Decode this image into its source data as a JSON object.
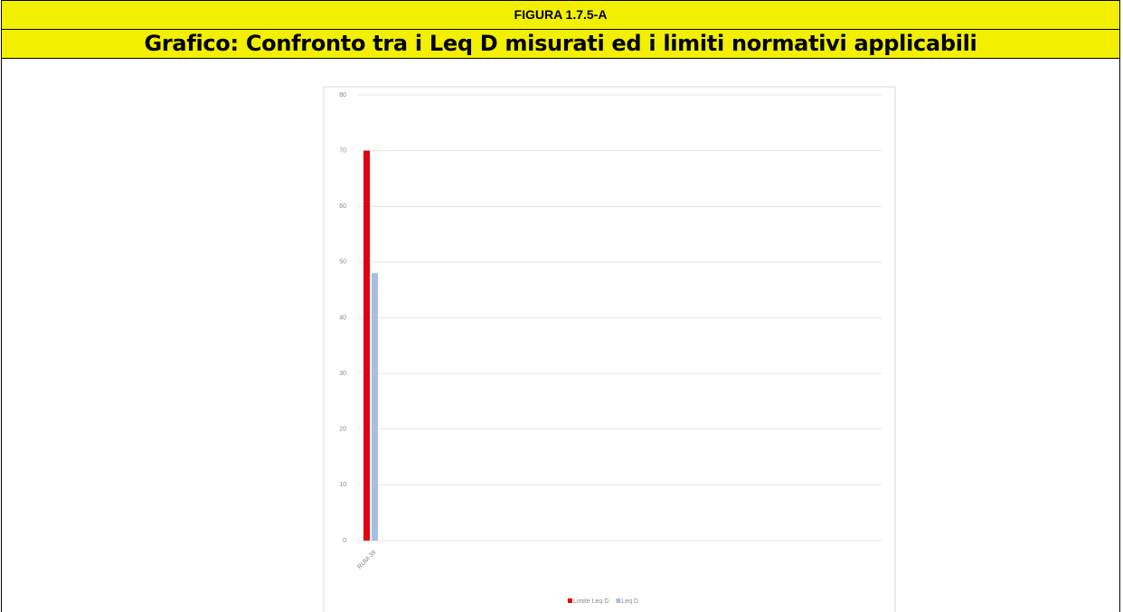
{
  "header": {
    "figure": "FIGURA 1.7.5-A",
    "title": "Grafico: Confronto tra i Leq D misurati ed i limiti normativi applicabili"
  },
  "chart_data": {
    "type": "bar",
    "categories": [
      "RUM-39"
    ],
    "series": [
      {
        "name": "Limite Leq D",
        "color": "#e3000f",
        "values": [
          70
        ]
      },
      {
        "name": "Leq D",
        "color": "#a7c0e2",
        "values": [
          48
        ]
      }
    ],
    "ylim": [
      0,
      80
    ],
    "yticks": [
      0,
      10,
      20,
      30,
      40,
      50,
      60,
      70,
      80
    ],
    "grid": true,
    "legend": "bottom"
  }
}
